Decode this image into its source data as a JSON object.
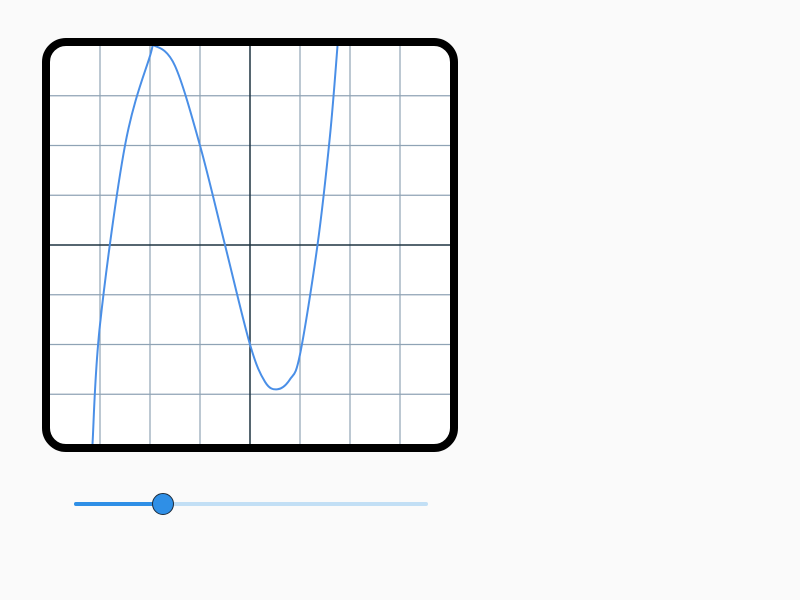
{
  "graph": {
    "function": "cubic",
    "curve_color": "#4a8fe7",
    "frame_color": "#000000",
    "grid_color": "#8fa3b5",
    "axis_color": "#1f3340",
    "x_range": [
      -4,
      4
    ],
    "y_range": [
      -4,
      4
    ],
    "grid_step": 1,
    "curve_points": [
      {
        "x": -3.15,
        "y": -4.0
      },
      {
        "x": -3.0,
        "y": -1.6
      },
      {
        "x": -2.5,
        "y": 2.0
      },
      {
        "x": -2.0,
        "y": 3.8
      },
      {
        "x": -1.9,
        "y": 4.0
      },
      {
        "x": -1.5,
        "y": 3.6
      },
      {
        "x": -1.0,
        "y": 2.0
      },
      {
        "x": -0.5,
        "y": 0.0
      },
      {
        "x": 0.0,
        "y": -2.0
      },
      {
        "x": 0.3,
        "y": -2.75
      },
      {
        "x": 0.55,
        "y": -2.9
      },
      {
        "x": 0.8,
        "y": -2.7
      },
      {
        "x": 1.0,
        "y": -2.2
      },
      {
        "x": 1.35,
        "y": 0.0
      },
      {
        "x": 1.6,
        "y": 2.2
      },
      {
        "x": 1.75,
        "y": 4.0
      }
    ]
  },
  "slider": {
    "value": 0.25,
    "fill_color": "#2f8fe6",
    "track_color": "#c2dff5"
  }
}
